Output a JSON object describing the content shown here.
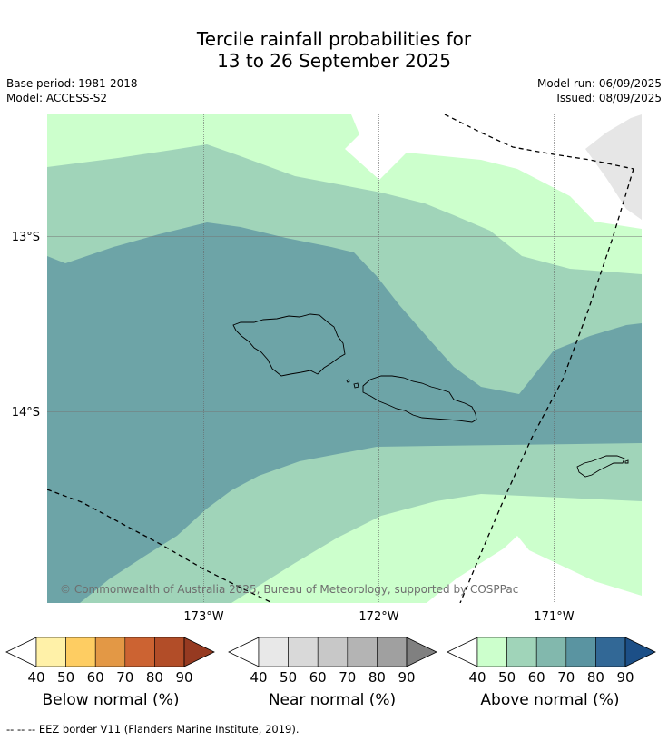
{
  "title_line1": "Tercile rainfall probabilities for",
  "title_line2": "13 to 26 September 2025",
  "base_period": "Base period: 1981-2018",
  "model": "Model: ACCESS-S2",
  "model_run": "Model run: 06/09/2025",
  "issued": "Issued: 08/09/2025",
  "lat_labels": [
    "13°S",
    "14°S"
  ],
  "lon_labels": [
    "173°W",
    "172°W",
    "171°W"
  ],
  "copyright": "© Commonwealth of Australia 2025, Bureau of Meteorology, supported by COSPPac",
  "colorbars": [
    {
      "label": "Below normal (%)",
      "ticks": [
        "40",
        "50",
        "60",
        "70",
        "80",
        "90"
      ],
      "colors": [
        "#ffffff",
        "#fff1a8",
        "#fecd62",
        "#e39845",
        "#cc6332",
        "#b24d28",
        "#963a21"
      ]
    },
    {
      "label": "Near normal (%)",
      "ticks": [
        "40",
        "50",
        "60",
        "70",
        "80",
        "90"
      ],
      "colors": [
        "#ffffff",
        "#e8e8e8",
        "#d9d9d9",
        "#c8c8c8",
        "#b4b4b4",
        "#a0a0a0",
        "#808080"
      ]
    },
    {
      "label": "Above normal (%)",
      "ticks": [
        "40",
        "50",
        "60",
        "70",
        "80",
        "90"
      ],
      "colors": [
        "#ffffff",
        "#ccffcc",
        "#a0d4b9",
        "#82b8ad",
        "#5a94a1",
        "#326896",
        "#1c4f87"
      ]
    }
  ],
  "legend_colors": {
    "above_40_50": "#ccffcc",
    "above_50_60": "#a0d4b9",
    "above_60_70": "#6da4a7",
    "no_data": "#e6e6e6"
  },
  "footnote": "--  --  -- EEZ border V11 (Flanders Marine Institute, 2019)."
}
